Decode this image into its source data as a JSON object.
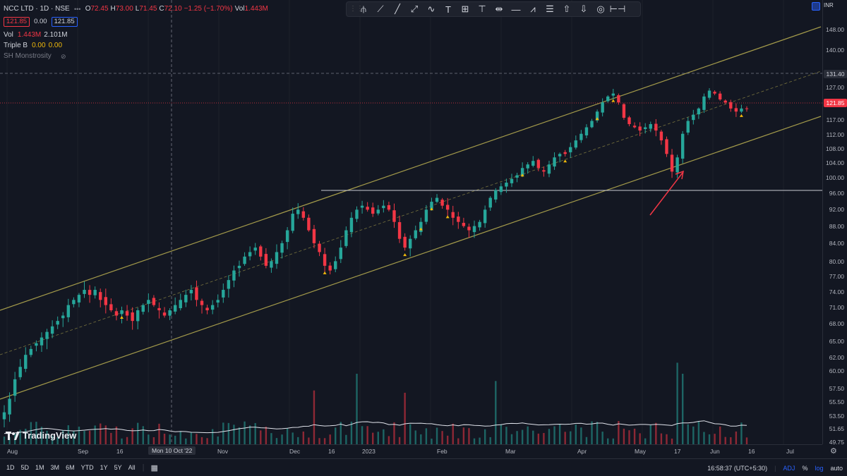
{
  "legend": {
    "symbol": "NCC LTD · 1D · NSE",
    "o_label": "O",
    "o_value": "72.45",
    "h_label": "H",
    "h_value": "73.00",
    "l_label": "L",
    "l_value": "71.45",
    "c_label": "C",
    "c_value": "72.10",
    "change": "−1.25 (−1.70%)",
    "vol_label": "Vol",
    "vol_value": "1.443M",
    "bid": "121.85",
    "spread": "0.00",
    "ask": "121.85",
    "vol_row_label": "Vol",
    "vol_row_value": "1.443M",
    "vol_row_ma": "2.101M",
    "triple_label": "Triple B",
    "triple_v1": "0.00",
    "triple_v2": "0.00",
    "sh_label": "SH Monstrosity"
  },
  "toolbar": {
    "icons": [
      "pitchfork-icon",
      "trend-line-icon",
      "ray-icon",
      "extended-line-icon",
      "path-icon",
      "text-icon",
      "frame-icon",
      "anchored-text-icon",
      "date-range-icon",
      "horizontal-line-icon",
      "zigzag-icon",
      "list-icon",
      "arrow-up-icon",
      "arrow-down-icon",
      "target-icon",
      "width-range-icon"
    ]
  },
  "price_axis": {
    "currency": "INR",
    "ticks": [
      "148.00",
      "140.00",
      "131.40",
      "127.00",
      "121.85",
      "117.00",
      "112.00",
      "108.00",
      "104.00",
      "100.00",
      "96.00",
      "92.00",
      "88.00",
      "84.00",
      "80.00",
      "77.00",
      "74.00",
      "71.00",
      "68.00",
      "65.00",
      "62.00",
      "60.00",
      "57.50",
      "55.50",
      "53.50",
      "51.65",
      "49.75"
    ],
    "crosshair_price": "131.40",
    "last_price": "121.85"
  },
  "time_axis": {
    "ticks": [
      "Aug",
      "Sep",
      "16",
      "Nov",
      "Dec",
      "16",
      "2023",
      "Feb",
      "Mar",
      "Apr",
      "May",
      "17",
      "Jun",
      "16",
      "Jul"
    ],
    "crosshair_date": "Mon 10 Oct '22"
  },
  "branding": {
    "logo_text": "TradingView"
  },
  "bottom_bar": {
    "timeframes": [
      "1D",
      "5D",
      "1M",
      "3M",
      "6M",
      "YTD",
      "1Y",
      "5Y",
      "All"
    ],
    "clock": "16:58:37 (UTC+5:30)",
    "adj": "ADJ",
    "percent": "%",
    "log": "log",
    "auto": "auto"
  },
  "colors": {
    "bg": "#131722",
    "up": "#26a69a",
    "down": "#f23645",
    "channel": "#a39a4a",
    "volume_ma": "#e0e3eb",
    "arrow": "#f23645"
  },
  "chart_data": {
    "type": "candlestick",
    "symbol": "NCC LTD",
    "interval": "1D",
    "scale": "log",
    "y_range": [
      49.75,
      148.0
    ],
    "closes": [
      54,
      56,
      59,
      61,
      63,
      64,
      65,
      66,
      67,
      68,
      69,
      70,
      72,
      73,
      74,
      75,
      74,
      75,
      73,
      72,
      71,
      70,
      71,
      70,
      69,
      71,
      72,
      73,
      72,
      71,
      70,
      71,
      72,
      73,
      74,
      75,
      73,
      72,
      71,
      72,
      73,
      75,
      77,
      79,
      80,
      82,
      83,
      84,
      82,
      80,
      81,
      83,
      85,
      88,
      92,
      93,
      91,
      88,
      85,
      83,
      80,
      79,
      81,
      84,
      88,
      91,
      93,
      94,
      93,
      92,
      93,
      94,
      93,
      90,
      86,
      84,
      86,
      88,
      90,
      93,
      95,
      96,
      94,
      93,
      91,
      90,
      89,
      88,
      89,
      90,
      93,
      96,
      98,
      99,
      100,
      101,
      102,
      104,
      105,
      106,
      104,
      103,
      105,
      107,
      108,
      108,
      110,
      112,
      114,
      116,
      118,
      121,
      124,
      126,
      127,
      124,
      119,
      117,
      116,
      115,
      116,
      117,
      115,
      112,
      108,
      103,
      107,
      114,
      118,
      120,
      122,
      126,
      128,
      127,
      125,
      124,
      122,
      121,
      122,
      122
    ]
  }
}
